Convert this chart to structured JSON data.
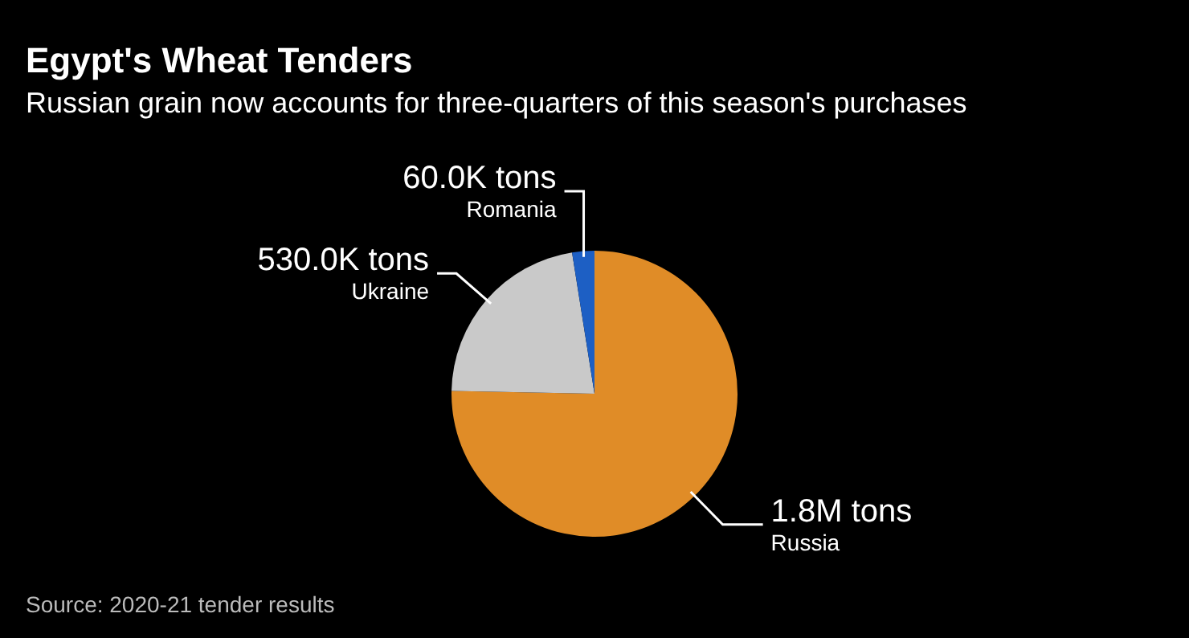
{
  "chart_data": {
    "type": "pie",
    "title": "Egypt's Wheat Tenders",
    "subtitle": "Russian grain now accounts for three-quarters of this season's purchases",
    "categories": [
      "Russia",
      "Ukraine",
      "Romania"
    ],
    "values": [
      1800000,
      530000,
      60000
    ],
    "value_labels": [
      "1.8M tons",
      "530.0K tons",
      "60.0K tons"
    ],
    "colors": [
      "#e08c27",
      "#c9c9c9",
      "#1d5fc4"
    ],
    "annotations": [
      "Source: 2020-21 tender results"
    ]
  }
}
